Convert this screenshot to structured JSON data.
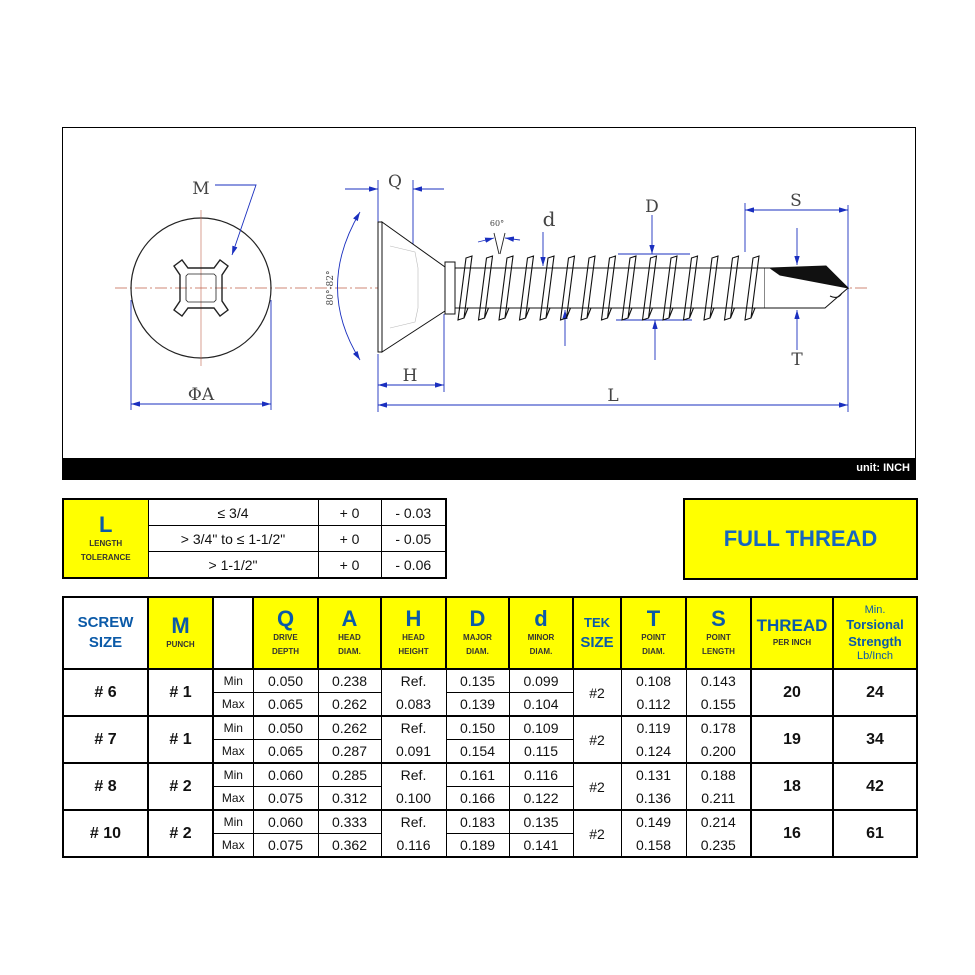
{
  "drawing": {
    "labels": {
      "M": "M",
      "A": "ΦA",
      "Q": "Q",
      "H": "H",
      "L": "L",
      "d": "d",
      "D": "D",
      "S": "S",
      "T": "T",
      "thread_angle": "60°",
      "head_angle": "80°-82°"
    },
    "unit": "unit: INCH",
    "colors": {
      "dimension": "#1a2fbf",
      "centerline": "#c0604a"
    }
  },
  "tolerance": {
    "title": "L",
    "subtitle1": "LENGTH",
    "subtitle2": "TOLERANCE",
    "rows": [
      {
        "range": "≤ 3/4",
        "plus": "+ 0",
        "minus": "- 0.03"
      },
      {
        "range": "> 3/4\" to ≤ 1-1/2\"",
        "plus": "+ 0",
        "minus": "- 0.05"
      },
      {
        "range": "> 1-1/2\"",
        "plus": "+ 0",
        "minus": "- 0.06"
      }
    ]
  },
  "thread_type": "FULL THREAD",
  "colors": {
    "highlight": "#ffff00",
    "header_text": "#0b5aa8"
  },
  "table": {
    "headers": {
      "screw": [
        "SCREW",
        "SIZE"
      ],
      "M": [
        "M",
        "PUNCH"
      ],
      "Q": [
        "Q",
        "DRIVE",
        "DEPTH"
      ],
      "A": [
        "A",
        "HEAD",
        "DIAM."
      ],
      "H": [
        "H",
        "HEAD",
        "HEIGHT"
      ],
      "D": [
        "D",
        "MAJOR",
        "DIAM."
      ],
      "d": [
        "d",
        "MINOR",
        "DIAM."
      ],
      "tek": [
        "TEK",
        "SIZE"
      ],
      "T": [
        "T",
        "POINT",
        "DIAM."
      ],
      "S": [
        "S",
        "POINT",
        "LENGTH"
      ],
      "thread": [
        "THREAD",
        "PER INCH"
      ],
      "torsion": [
        "Min.",
        "Torsional",
        "Strength",
        "Lb/Inch"
      ]
    },
    "min_label": "Min",
    "max_label": "Max",
    "ref_label": "Ref.",
    "rows": [
      {
        "size": "# 6",
        "punch": "# 1",
        "Q": [
          "0.050",
          "0.065"
        ],
        "A": [
          "0.238",
          "0.262"
        ],
        "H": "0.083",
        "D": [
          "0.135",
          "0.139"
        ],
        "d": [
          "0.099",
          "0.104"
        ],
        "tek": "#2",
        "T": [
          "0.108",
          "0.112"
        ],
        "S": [
          "0.143",
          "0.155"
        ],
        "thread": "20",
        "torsion": "24"
      },
      {
        "size": "# 7",
        "punch": "# 1",
        "Q": [
          "0.050",
          "0.065"
        ],
        "A": [
          "0.262",
          "0.287"
        ],
        "H": "0.091",
        "D": [
          "0.150",
          "0.154"
        ],
        "d": [
          "0.109",
          "0.115"
        ],
        "tek": "#2",
        "T": [
          "0.119",
          "0.124"
        ],
        "S": [
          "0.178",
          "0.200"
        ],
        "thread": "19",
        "torsion": "34"
      },
      {
        "size": "# 8",
        "punch": "# 2",
        "Q": [
          "0.060",
          "0.075"
        ],
        "A": [
          "0.285",
          "0.312"
        ],
        "H": "0.100",
        "D": [
          "0.161",
          "0.166"
        ],
        "d": [
          "0.116",
          "0.122"
        ],
        "tek": "#2",
        "T": [
          "0.131",
          "0.136"
        ],
        "S": [
          "0.188",
          "0.211"
        ],
        "thread": "18",
        "torsion": "42"
      },
      {
        "size": "# 10",
        "punch": "# 2",
        "Q": [
          "0.060",
          "0.075"
        ],
        "A": [
          "0.333",
          "0.362"
        ],
        "H": "0.116",
        "D": [
          "0.183",
          "0.189"
        ],
        "d": [
          "0.135",
          "0.141"
        ],
        "tek": "#2",
        "T": [
          "0.149",
          "0.158"
        ],
        "S": [
          "0.214",
          "0.235"
        ],
        "thread": "16",
        "torsion": "61"
      }
    ]
  }
}
